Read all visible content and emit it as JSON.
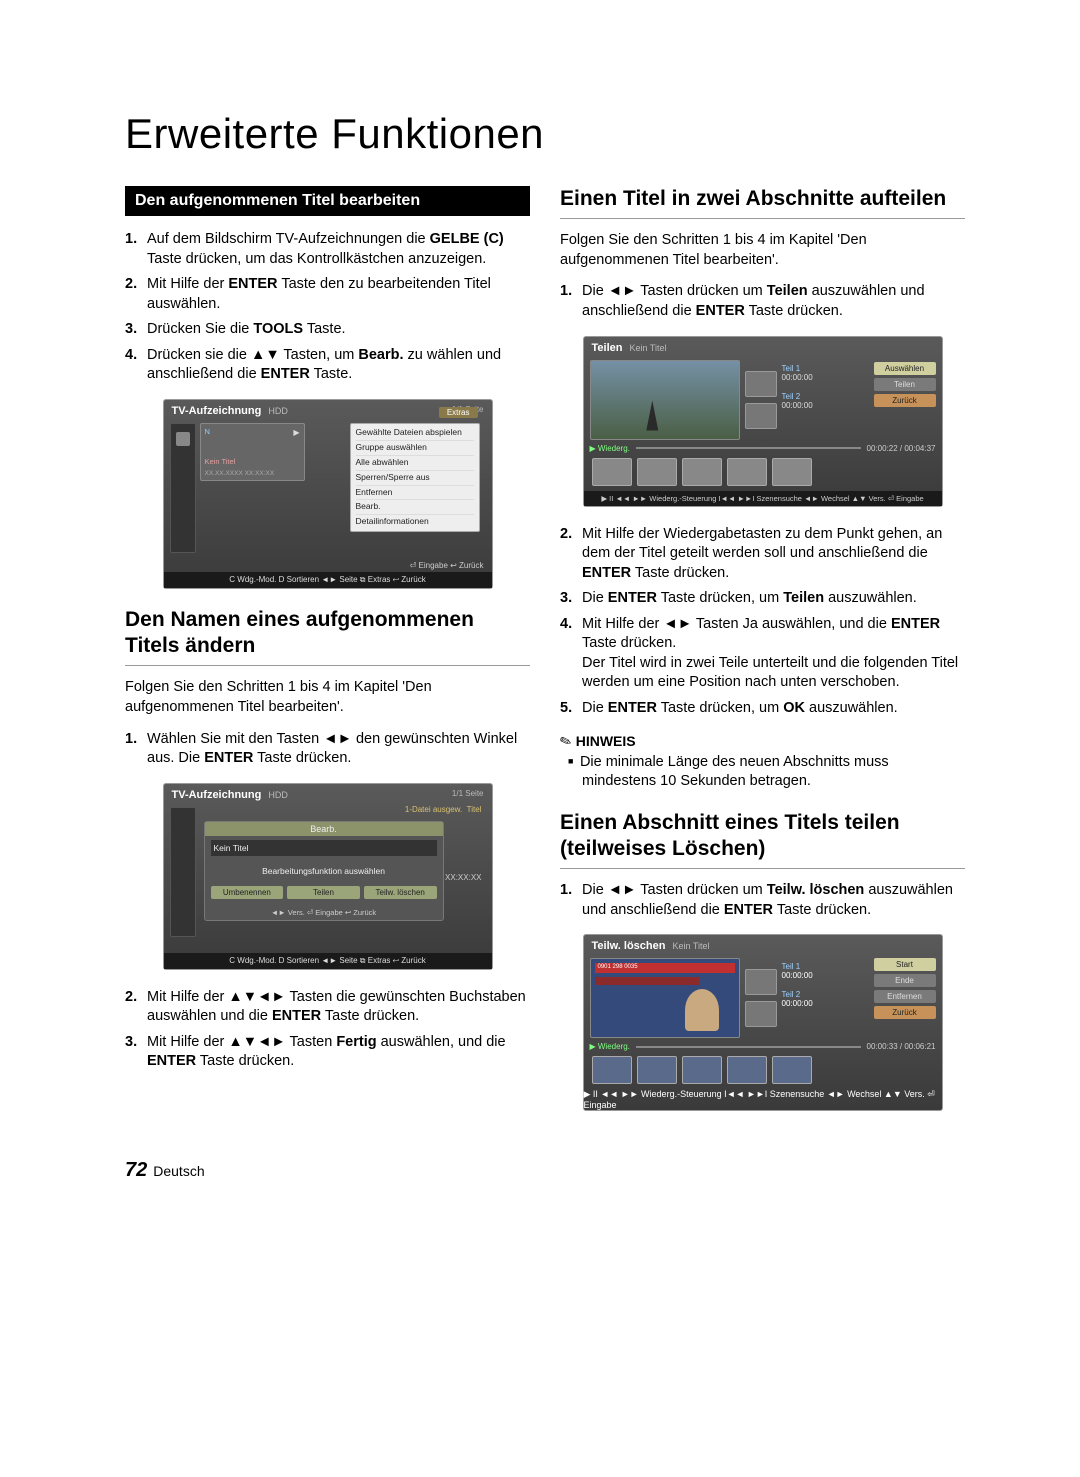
{
  "page": {
    "title": "Erweiterte Funktionen",
    "number": "72",
    "lang": "Deutsch"
  },
  "left": {
    "blackbar": "Den aufgenommenen Titel bearbeiten",
    "steps1": [
      {
        "n": "1.",
        "t": "Auf dem Bildschirm TV-Aufzeichnungen die <b>GELBE (C)</b> Taste drücken, um das Kontrollkästchen anzuzeigen."
      },
      {
        "n": "2.",
        "t": "Mit Hilfe der <b>ENTER</b> Taste den zu bearbeitenden Titel auswählen."
      },
      {
        "n": "3.",
        "t": "Drücken Sie die <b>TOOLS</b> Taste."
      },
      {
        "n": "4.",
        "t": "Drücken sie die ▲▼ Tasten, um <b>Bearb.</b> zu wählen und anschließend die <b>ENTER</b> Taste."
      }
    ],
    "shot1": {
      "title": "TV-Aufzeichnung",
      "hdd": "HDD",
      "page": "1/1 Seite",
      "extras": "Extras",
      "menu": [
        "Gewählte Dateien abspielen",
        "Gruppe auswählen",
        "Alle abwählen",
        "Sperren/Sperre aus",
        "Entfernen",
        "Bearb.",
        "Detailinformationen"
      ],
      "thumb": {
        "n": "N",
        "p": "▶",
        "nt": "Kein Titel",
        "dt": "XX.XX.XXXX  XX:XX:XX"
      },
      "mini": "⏎ Eingabe  ↩ Zurück",
      "footer": "C Wdg.-Mod.  D Sortieren  ◄► Seite  ⧉ Extras  ↩ Zurück"
    },
    "sub1": "Den Namen eines aufgenommenen Titels ändern",
    "para1": "Folgen Sie den Schritten 1 bis 4 im Kapitel 'Den aufgenommenen Titel bearbeiten'.",
    "steps2": [
      {
        "n": "1.",
        "t": "Wählen Sie mit den Tasten ◄► den gewünschten Winkel aus. Die <b>ENTER</b> Taste drücken."
      }
    ],
    "shot2": {
      "title": "TV-Aufzeichnung",
      "hdd": "HDD",
      "page": "1/1 Seite",
      "sel": "1-Datei ausgew.",
      "titleR": "Titel",
      "hdr": "Bearb.",
      "field": "Kein Titel",
      "msg": "Bearbeitungsfunktion auswählen",
      "btns": [
        "Umbenennen",
        "Teilen",
        "Teilw. löschen"
      ],
      "hints": "◄► Vers.  ⏎ Eingabe  ↩ Zurück",
      "time": "XX:XX:XX",
      "footer": "C Wdg.-Mod.  D Sortieren  ◄► Seite  ⧉ Extras  ↩ Zurück"
    },
    "steps3": [
      {
        "n": "2.",
        "t": "Mit Hilfe der ▲▼◄► Tasten die gewünschten Buchstaben auswählen und die <b>ENTER</b> Taste drücken."
      },
      {
        "n": "3.",
        "t": "Mit Hilfe der ▲▼◄► Tasten <b>Fertig</b> auswählen, und die <b>ENTER</b> Taste drücken."
      }
    ]
  },
  "right": {
    "sub1": "Einen Titel in zwei Abschnitte aufteilen",
    "para1": "Folgen Sie den Schritten 1 bis 4 im Kapitel 'Den aufgenommenen Titel bearbeiten'.",
    "steps1": [
      {
        "n": "1.",
        "t": "Die ◄► Tasten drücken um <b>Teilen</b> auszuwählen und anschließend die <b>ENTER</b> Taste drücken."
      }
    ],
    "shot3": {
      "title": "Teilen",
      "sub": "Kein Titel",
      "t1": "Teil 1",
      "t1v": "00:00:00",
      "t2": "Teil 2",
      "t2v": "00:00:00",
      "btns": [
        "Auswählen",
        "Teilen",
        "Zurück"
      ],
      "play": "▶ Wiederg.",
      "time": "00:00:22 / 00:04:37",
      "footer": "▶ II ◄◄ ►► Wiederg.-Steuerung  I◄◄ ►►I Szenensuche  ◄► Wechsel  ▲▼ Vers.  ⏎ Eingabe"
    },
    "steps2": [
      {
        "n": "2.",
        "t": "Mit Hilfe der Wiedergabetasten zu dem Punkt gehen, an dem der Titel geteilt werden soll und anschließend die <b>ENTER</b> Taste drücken."
      },
      {
        "n": "3.",
        "t": "Die <b>ENTER</b> Taste drücken, um <b>Teilen</b> auszuwählen."
      },
      {
        "n": "4.",
        "t": "Mit Hilfe der ◄► Tasten Ja auswählen, und die <b>ENTER</b> Taste drücken.<br>Der Titel wird in zwei Teile unterteilt und die folgenden Titel werden um eine Position nach unten verschoben."
      },
      {
        "n": "5.",
        "t": "Die <b>ENTER</b> Taste drücken, um <b>OK</b> auszuwählen."
      }
    ],
    "hinweis_label": "HINWEIS",
    "note": "Die minimale Länge des neuen Abschnitts muss mindestens 10 Sekunden betragen.",
    "sub2": "Einen Abschnitt eines Titels teilen (teilweises Löschen)",
    "steps3": [
      {
        "n": "1.",
        "t": "Die ◄► Tasten drücken um <b>Teilw. löschen</b> auszuwählen und anschließend die <b>ENTER</b> Taste drücken."
      }
    ],
    "shot4": {
      "title": "Teilw. löschen",
      "sub": "Kein Titel",
      "bar": "0901 298 0035",
      "t1": "Teil 1",
      "t1v": "00:00:00",
      "t2": "Teil 2",
      "t2v": "00:00:00",
      "btns": [
        "Start",
        "Ende",
        "Entfernen",
        "Zurück"
      ],
      "play": "▶ Wiederg.",
      "time": "00:00:33 / 00:06:21",
      "footer": "▶ II ◄◄ ►► Wiederg.-Steuerung  I◄◄ ►►I Szenensuche  ◄► Wechsel  ▲▼ Vers.  ⏎ Eingabe"
    }
  }
}
